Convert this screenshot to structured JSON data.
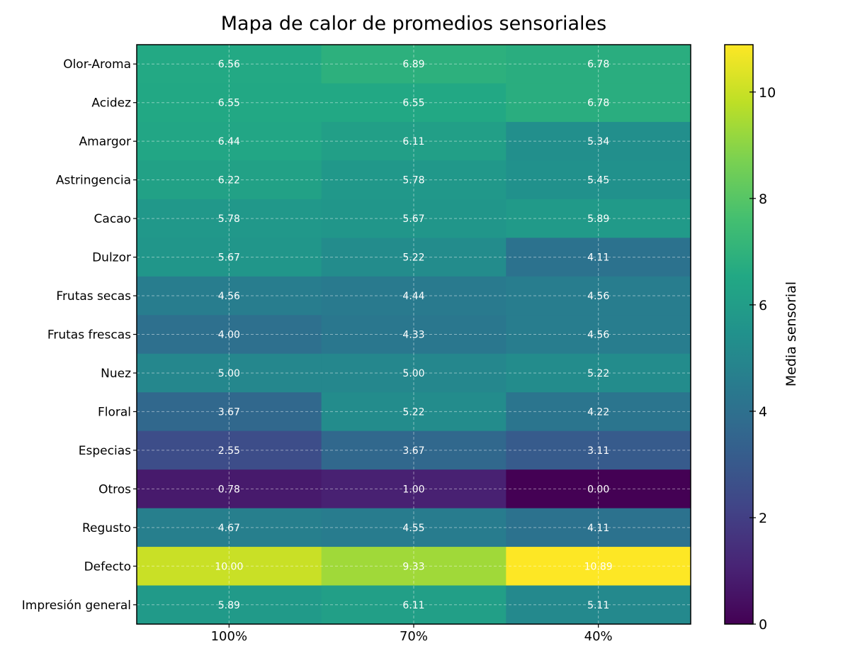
{
  "chart_data": {
    "type": "heatmap",
    "title": "Mapa de calor de promedios sensoriales",
    "xlabel": "",
    "ylabel": "",
    "columns": [
      "100%",
      "70%",
      "40%"
    ],
    "rows": [
      "Olor-Aroma",
      "Acidez",
      "Amargor",
      "Astringencia",
      "Cacao",
      "Dulzor",
      "Frutas secas",
      "Frutas frescas",
      "Nuez",
      "Floral",
      "Especias",
      "Otros",
      "Regusto",
      "Defecto",
      "Impresión general"
    ],
    "values": [
      [
        6.56,
        6.89,
        6.78
      ],
      [
        6.55,
        6.55,
        6.78
      ],
      [
        6.44,
        6.11,
        5.34
      ],
      [
        6.22,
        5.78,
        5.45
      ],
      [
        5.78,
        5.67,
        5.89
      ],
      [
        5.67,
        5.22,
        4.11
      ],
      [
        4.56,
        4.44,
        4.56
      ],
      [
        4.0,
        4.33,
        4.56
      ],
      [
        5.0,
        5.0,
        5.22
      ],
      [
        3.67,
        5.22,
        4.22
      ],
      [
        2.55,
        3.67,
        3.11
      ],
      [
        0.78,
        1.0,
        0.0
      ],
      [
        4.67,
        4.55,
        4.11
      ],
      [
        10.0,
        9.33,
        10.89
      ],
      [
        5.89,
        6.11,
        5.11
      ]
    ],
    "value_labels": [
      [
        "6.56",
        "6.89",
        "6.78"
      ],
      [
        "6.55",
        "6.55",
        "6.78"
      ],
      [
        "6.44",
        "6.11",
        "5.34"
      ],
      [
        "6.22",
        "5.78",
        "5.45"
      ],
      [
        "5.78",
        "5.67",
        "5.89"
      ],
      [
        "5.67",
        "5.22",
        "4.11"
      ],
      [
        "4.56",
        "4.44",
        "4.56"
      ],
      [
        "4.00",
        "4.33",
        "4.56"
      ],
      [
        "5.00",
        "5.00",
        "5.22"
      ],
      [
        "3.67",
        "5.22",
        "4.22"
      ],
      [
        "2.55",
        "3.67",
        "3.11"
      ],
      [
        "0.78",
        "1.00",
        "0.00"
      ],
      [
        "4.67",
        "4.55",
        "4.11"
      ],
      [
        "10.00",
        "9.33",
        "10.89"
      ],
      [
        "5.89",
        "6.11",
        "5.11"
      ]
    ],
    "colormap": "viridis",
    "color_range": [
      0,
      10.89
    ],
    "colorbar": {
      "label": "Media sensorial",
      "ticks": [
        0,
        2,
        4,
        6,
        8,
        10
      ],
      "tick_labels": [
        "0",
        "2",
        "4",
        "6",
        "8",
        "10"
      ]
    },
    "grid": true,
    "grid_style": "dashed"
  }
}
